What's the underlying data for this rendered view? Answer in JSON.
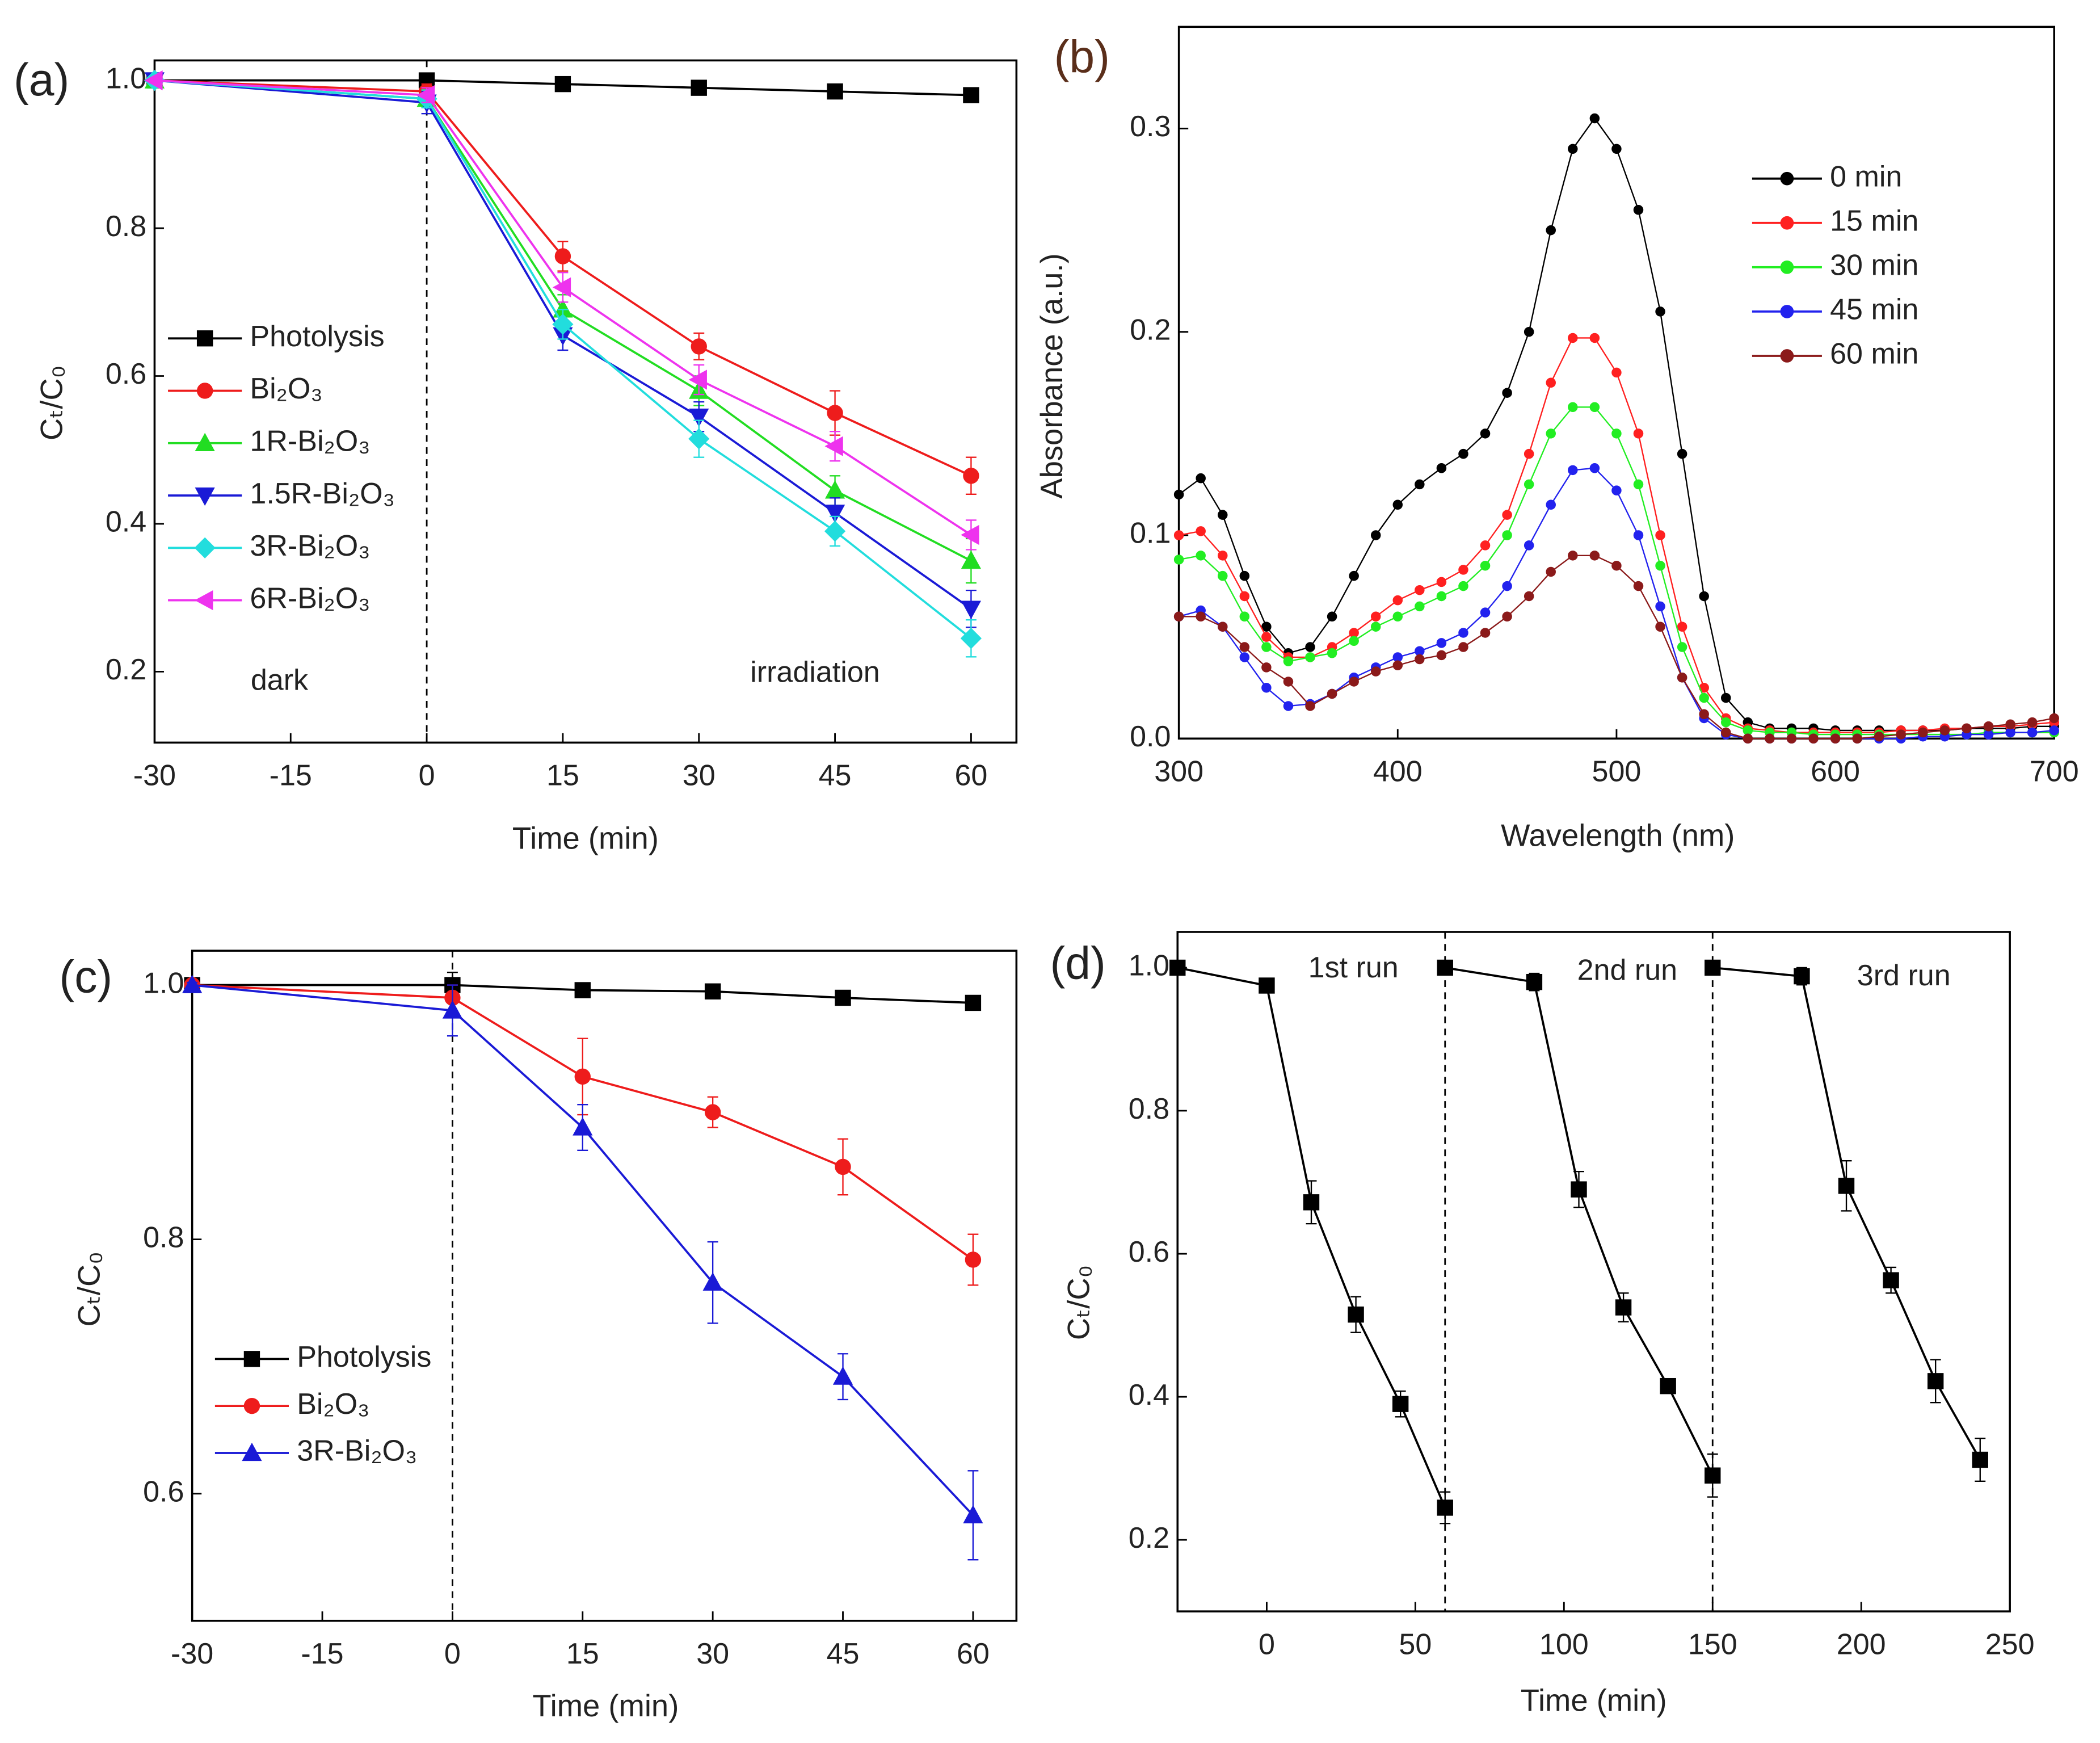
{
  "chart_data": [
    {
      "type": "line",
      "panel_label": "(a)",
      "x_label": "Time (min)",
      "y_label": "Cₜ/C₀",
      "x": [
        -30,
        0,
        15,
        30,
        45,
        60
      ],
      "xlim": [
        -30,
        65
      ],
      "ylim": [
        0.104,
        1.027
      ],
      "xticks": [
        -30,
        -15,
        0,
        15,
        30,
        45,
        60
      ],
      "yticks": [
        0.2,
        0.4,
        0.6,
        0.8,
        {
          "value": 1,
          "label": "1.0"
        }
      ],
      "vlines": [
        0
      ],
      "annotations": [
        "dark",
        "irradiation"
      ],
      "legend": "left",
      "series": [
        {
          "name": "Photolysis",
          "color": "#000000",
          "marker": "square",
          "values": [
            1.0,
            1.0,
            0.995,
            0.99,
            0.985,
            0.98
          ],
          "errors": [
            0.003,
            0.005,
            0.004,
            0.004,
            0.004,
            0.004
          ]
        },
        {
          "name": "Bi₂O₃",
          "color": "#ee1c1c",
          "marker": "circle",
          "values": [
            1.0,
            0.985,
            0.762,
            0.64,
            0.55,
            0.465
          ],
          "errors": [
            0.003,
            0.01,
            0.02,
            0.018,
            0.03,
            0.025
          ]
        },
        {
          "name": "1R-Bi₂O₃",
          "color": "#22dd22",
          "marker": "triangle-up",
          "values": [
            1.0,
            0.975,
            0.69,
            0.58,
            0.445,
            0.35
          ],
          "errors": [
            0.003,
            0.012,
            0.02,
            0.02,
            0.02,
            0.03
          ]
        },
        {
          "name": "1.5R-Bi₂O₃",
          "color": "#1a1ad6",
          "marker": "triangle-down",
          "values": [
            1.0,
            0.97,
            0.655,
            0.545,
            0.415,
            0.285
          ],
          "errors": [
            0.003,
            0.015,
            0.02,
            0.02,
            0.02,
            0.025
          ]
        },
        {
          "name": "3R-Bi₂O₃",
          "color": "#22dddd",
          "marker": "diamond",
          "values": [
            1.0,
            0.975,
            0.67,
            0.515,
            0.39,
            0.245
          ],
          "errors": [
            0.003,
            0.012,
            0.02,
            0.025,
            0.02,
            0.025
          ]
        },
        {
          "name": "6R-Bi₂O₃",
          "color": "#ee33ee",
          "marker": "triangle-left",
          "values": [
            1.0,
            0.98,
            0.72,
            0.595,
            0.505,
            0.385
          ],
          "errors": [
            0.003,
            0.01,
            0.02,
            0.02,
            0.02,
            0.02
          ]
        }
      ]
    },
    {
      "type": "scatter-line",
      "panel_label": "(b)",
      "x_label": "Wavelength (nm)",
      "y_label": "Absorbance (a.u.)",
      "x": [
        300,
        310,
        320,
        330,
        340,
        350,
        360,
        370,
        380,
        390,
        400,
        410,
        420,
        430,
        440,
        450,
        460,
        470,
        480,
        490,
        500,
        510,
        520,
        530,
        540,
        550,
        560,
        570,
        580,
        590,
        600,
        610,
        620,
        630,
        640,
        650,
        660,
        670,
        680,
        690,
        700
      ],
      "xlim": [
        300,
        700
      ],
      "ylim": [
        0,
        0.35
      ],
      "xticks": [
        300,
        400,
        500,
        600,
        700
      ],
      "yticks": [
        {
          "value": 0,
          "label": "0.0"
        },
        0.1,
        0.2,
        0.3
      ],
      "legend": "right",
      "series": [
        {
          "name": "0 min",
          "color": "#000000",
          "values": [
            0.12,
            0.128,
            0.11,
            0.08,
            0.055,
            0.042,
            0.045,
            0.06,
            0.08,
            0.1,
            0.115,
            0.125,
            0.133,
            0.14,
            0.15,
            0.17,
            0.2,
            0.25,
            0.29,
            0.305,
            0.29,
            0.26,
            0.21,
            0.14,
            0.07,
            0.02,
            0.008,
            0.005,
            0.005,
            0.005,
            0.004,
            0.004,
            0.004,
            0.004,
            0.004,
            0.004,
            0.005,
            0.005,
            0.005,
            0.006,
            0.006
          ]
        },
        {
          "name": "15 min",
          "color": "#ff2020",
          "values": [
            0.1,
            0.102,
            0.09,
            0.07,
            0.05,
            0.04,
            0.04,
            0.045,
            0.052,
            0.06,
            0.068,
            0.073,
            0.077,
            0.083,
            0.095,
            0.11,
            0.14,
            0.175,
            0.197,
            0.197,
            0.18,
            0.15,
            0.1,
            0.055,
            0.025,
            0.01,
            0.005,
            0.004,
            0.003,
            0.003,
            0.003,
            0.003,
            0.003,
            0.004,
            0.004,
            0.005,
            0.005,
            0.006,
            0.006,
            0.007,
            0.008
          ]
        },
        {
          "name": "30 min",
          "color": "#22ee22",
          "values": [
            0.088,
            0.09,
            0.08,
            0.06,
            0.045,
            0.038,
            0.04,
            0.042,
            0.048,
            0.055,
            0.06,
            0.065,
            0.07,
            0.075,
            0.085,
            0.1,
            0.125,
            0.15,
            0.163,
            0.163,
            0.15,
            0.125,
            0.085,
            0.045,
            0.02,
            0.008,
            0.004,
            0.003,
            0.003,
            0.002,
            0.002,
            0.002,
            0.002,
            0.002,
            0.002,
            0.002,
            0.002,
            0.003,
            0.003,
            0.003,
            0.003
          ]
        },
        {
          "name": "45 min",
          "color": "#2222ee",
          "values": [
            0.06,
            0.063,
            0.055,
            0.04,
            0.025,
            0.016,
            0.017,
            0.022,
            0.03,
            0.035,
            0.04,
            0.043,
            0.047,
            0.052,
            0.062,
            0.075,
            0.095,
            0.115,
            0.132,
            0.133,
            0.122,
            0.1,
            0.065,
            0.03,
            0.01,
            0.002,
            0,
            0,
            0,
            0,
            0,
            0,
            0,
            0,
            0.001,
            0.001,
            0.002,
            0.002,
            0.003,
            0.003,
            0.004
          ]
        },
        {
          "name": "60 min",
          "color": "#8b1a1a",
          "values": [
            0.06,
            0.06,
            0.055,
            0.045,
            0.035,
            0.028,
            0.016,
            0.022,
            0.028,
            0.033,
            0.036,
            0.039,
            0.041,
            0.045,
            0.052,
            0.06,
            0.07,
            0.082,
            0.09,
            0.09,
            0.085,
            0.075,
            0.055,
            0.03,
            0.012,
            0.003,
            0,
            0,
            0,
            0,
            0,
            0,
            0.001,
            0.002,
            0.003,
            0.004,
            0.005,
            0.006,
            0.007,
            0.008,
            0.01
          ]
        }
      ]
    },
    {
      "type": "line",
      "panel_label": "(c)",
      "x_label": "Time (min)",
      "y_label": "Cₜ/C₀",
      "x": [
        -30,
        0,
        15,
        30,
        45,
        60
      ],
      "xlim": [
        -30,
        65
      ],
      "ylim": [
        0.5,
        1.027
      ],
      "xticks": [
        -30,
        -15,
        0,
        15,
        30,
        45,
        60
      ],
      "yticks": [
        0.6,
        0.8,
        {
          "value": 1,
          "label": "1.0"
        }
      ],
      "vlines": [
        0
      ],
      "legend": "left",
      "series": [
        {
          "name": "Photolysis",
          "color": "#000000",
          "marker": "square",
          "values": [
            1.0,
            1.0,
            0.996,
            0.995,
            0.99,
            0.986
          ],
          "errors": [
            0.002,
            0.01,
            0.003,
            0.003,
            0.003,
            0.003
          ]
        },
        {
          "name": "Bi₂O₃",
          "color": "#ee1c1c",
          "marker": "circle",
          "values": [
            1.0,
            0.99,
            0.928,
            0.9,
            0.857,
            0.784
          ],
          "errors": [
            0.002,
            0.01,
            0.03,
            0.012,
            0.022,
            0.02
          ]
        },
        {
          "name": "3R-Bi₂O₃",
          "color": "#1a1ad6",
          "marker": "triangle-up",
          "values": [
            1.0,
            0.98,
            0.888,
            0.766,
            0.692,
            0.583
          ],
          "errors": [
            0.002,
            0.02,
            0.018,
            0.032,
            0.018,
            0.035
          ]
        }
      ]
    },
    {
      "type": "line",
      "panel_label": "(d)",
      "x_label": "Time (min)",
      "y_label": "Cₜ/C₀",
      "xlim": [
        -30,
        250
      ],
      "ylim": [
        0.1,
        1.05
      ],
      "xticks": [
        0,
        50,
        100,
        150,
        200,
        250
      ],
      "yticks": [
        0.2,
        0.4,
        0.6,
        0.8,
        {
          "value": 1,
          "label": "1.0"
        }
      ],
      "vlines": [
        60,
        150
      ],
      "legend": "labels",
      "series": [
        {
          "name": "1st run",
          "color": "#000000",
          "marker": "square",
          "x": [
            -30,
            0,
            15,
            30,
            45,
            60
          ],
          "values": [
            1.0,
            0.975,
            0.672,
            0.515,
            0.39,
            0.245
          ],
          "errors": [
            0.003,
            0.01,
            0.03,
            0.025,
            0.018,
            0.022
          ]
        },
        {
          "name": "2nd run",
          "color": "#000000",
          "marker": "square",
          "x": [
            60,
            90,
            105,
            120,
            135,
            150
          ],
          "values": [
            1.0,
            0.98,
            0.69,
            0.525,
            0.415,
            0.29
          ],
          "errors": [
            0.003,
            0.012,
            0.025,
            0.02,
            0.01,
            0.03
          ]
        },
        {
          "name": "3rd run",
          "color": "#000000",
          "marker": "square",
          "x": [
            150,
            180,
            195,
            210,
            225,
            240
          ],
          "values": [
            1.0,
            0.988,
            0.695,
            0.563,
            0.422,
            0.312
          ],
          "errors": [
            0.003,
            0.012,
            0.035,
            0.018,
            0.03,
            0.03
          ]
        }
      ]
    }
  ]
}
